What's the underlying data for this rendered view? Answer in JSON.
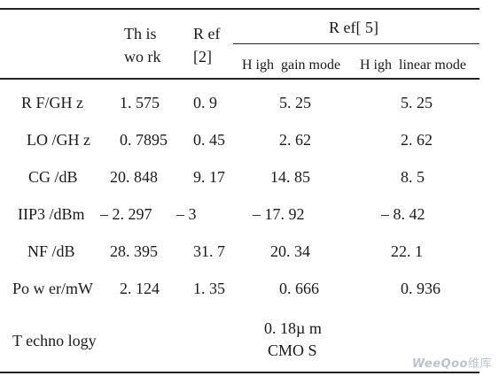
{
  "header": {
    "this_work": [
      "Th is",
      "wo rk"
    ],
    "ref2": [
      "R ef",
      "[2]"
    ],
    "ref5": "R ef[ 5]",
    "high_gain": "H igh  gain mode",
    "high_linear": "H igh  linear mode"
  },
  "rows": [
    {
      "label": "R F/GH z",
      "this": "1. 575",
      "ref2": "0. 9",
      "gain": "5. 25",
      "linear": "5. 25"
    },
    {
      "label": "LO /GH z",
      "this": "0. 7895",
      "ref2": "0. 45",
      "gain": "2. 62",
      "linear": "2. 62"
    },
    {
      "label": "CG /dB",
      "this": "20. 848",
      "ref2": "9. 17",
      "gain": "14. 85",
      "linear": "8. 5"
    },
    {
      "label": "IIP3 /dBm",
      "this": "– 2. 297",
      "ref2": "– 3",
      "gain": "– 17. 92",
      "linear": "– 8. 42"
    },
    {
      "label": "NF /dB",
      "this": "28. 395",
      "ref2": "31. 7",
      "gain": "20. 34",
      "linear": "22. 1"
    },
    {
      "label": "Po w er/mW",
      "this": "2. 124",
      "ref2": "1. 35",
      "gain": "0. 666",
      "linear": "0. 936"
    }
  ],
  "technology": {
    "label": "T echno logy",
    "value": [
      "0. 18µ m",
      "CMO S"
    ]
  },
  "watermark": {
    "part1": "WeeQoo",
    "part2": "维库"
  }
}
